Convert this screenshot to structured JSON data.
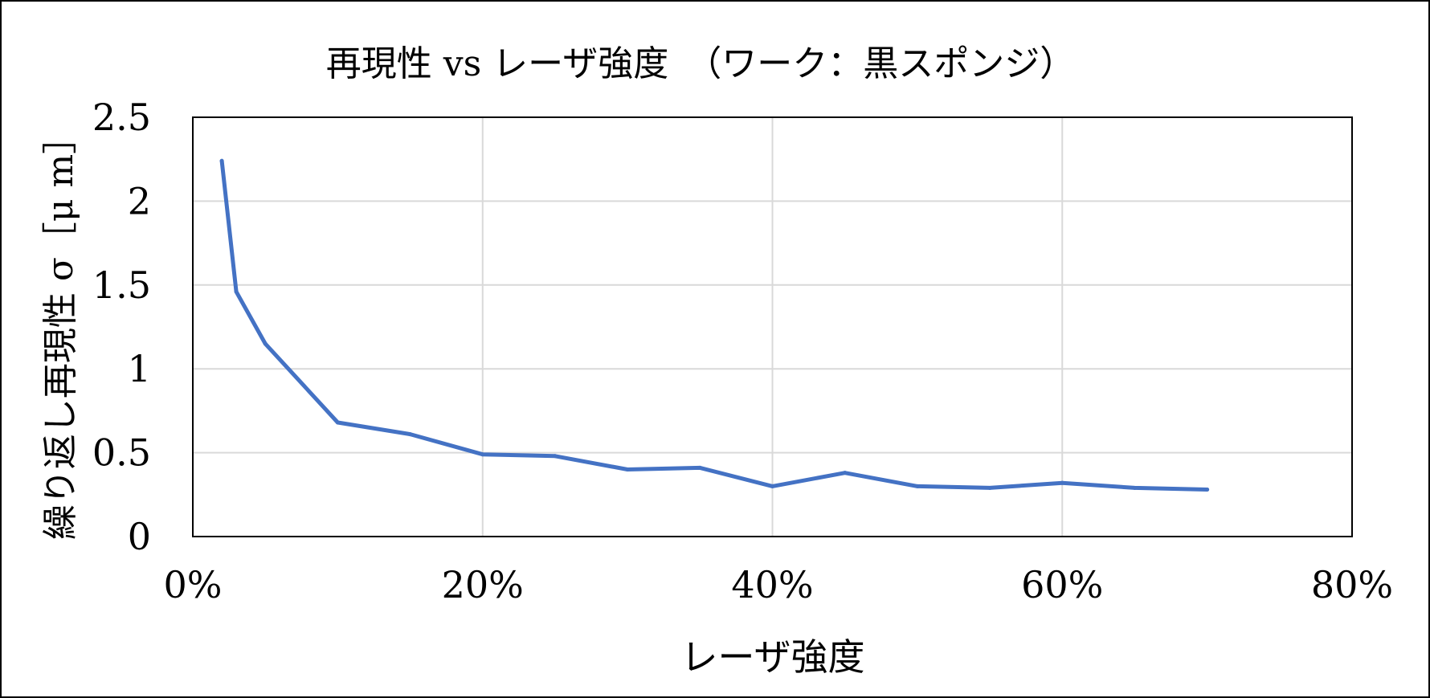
{
  "chart_data": {
    "type": "line",
    "title": "再現性 vs レーザ強度　（ワーク：黒スポンジ）",
    "xlabel": "レーザ強度",
    "ylabel": "繰り返し再現性 σ［μ m］",
    "xlim": [
      0,
      80
    ],
    "ylim": [
      0,
      2.5
    ],
    "x_ticks": [
      "0%",
      "20%",
      "40%",
      "60%",
      "80%"
    ],
    "y_ticks": [
      "0",
      "0.5",
      "1",
      "1.5",
      "2",
      "2.5"
    ],
    "grid": true,
    "legend": "none",
    "series": [
      {
        "color": "#4472C4",
        "x": [
          2,
          3,
          5,
          10,
          15,
          20,
          25,
          30,
          35,
          40,
          45,
          50,
          55,
          60,
          65,
          70
        ],
        "y": [
          2.24,
          1.46,
          1.15,
          0.68,
          0.61,
          0.49,
          0.48,
          0.4,
          0.41,
          0.3,
          0.38,
          0.3,
          0.29,
          0.32,
          0.29,
          0.28
        ]
      }
    ]
  }
}
